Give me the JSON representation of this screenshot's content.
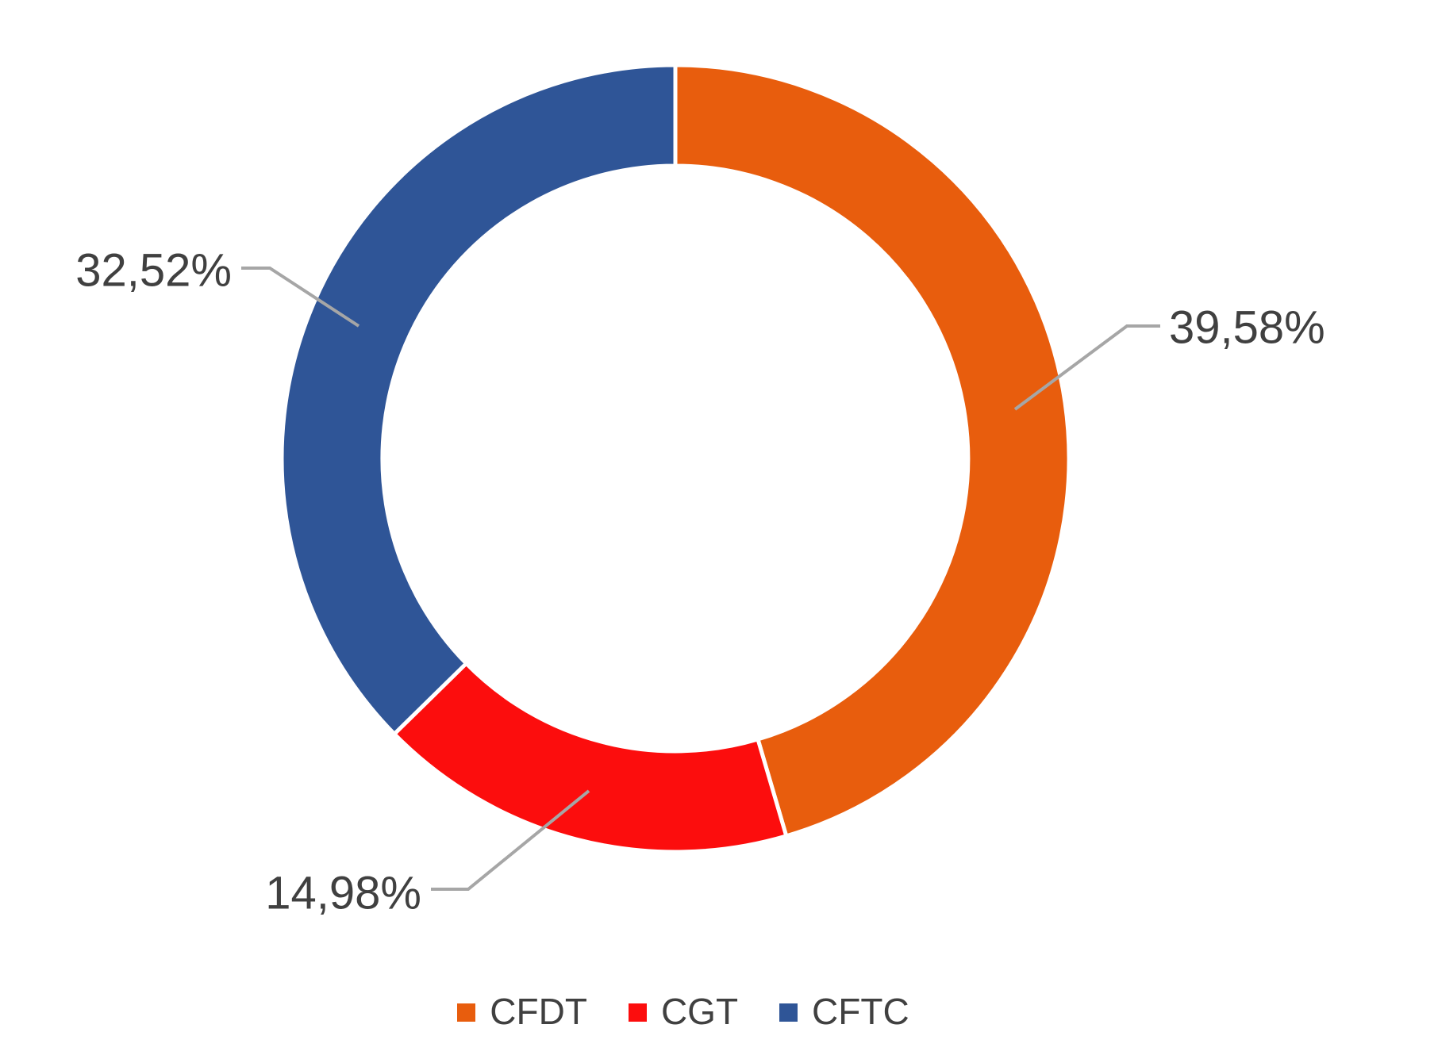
{
  "chart_data": {
    "type": "pie",
    "subtype": "donut",
    "title": "",
    "legend_position": "bottom",
    "start_angle_deg": 0,
    "direction": "clockwise",
    "donut_hole_ratio": 0.744,
    "normalized_total": 87.08,
    "background": "#FFFFFF",
    "label_color": "#404040",
    "leader_line_color": "#A6A6A6",
    "slice_gap_color": "#FFFFFF",
    "series": [
      {
        "name": "CFDT",
        "value": 39.58,
        "label": "39,58%",
        "color": "#E85D0D"
      },
      {
        "name": "CGT",
        "value": 14.98,
        "label": "14,98%",
        "color": "#FC0D0D"
      },
      {
        "name": "CFTC",
        "value": 32.52,
        "label": "32,52%",
        "color": "#2F5597"
      }
    ]
  },
  "legend": {
    "items": [
      {
        "label": "CFDT",
        "color": "#E85D0D"
      },
      {
        "label": "CGT",
        "color": "#FC0D0D"
      },
      {
        "label": "CFTC",
        "color": "#2F5597"
      }
    ]
  }
}
